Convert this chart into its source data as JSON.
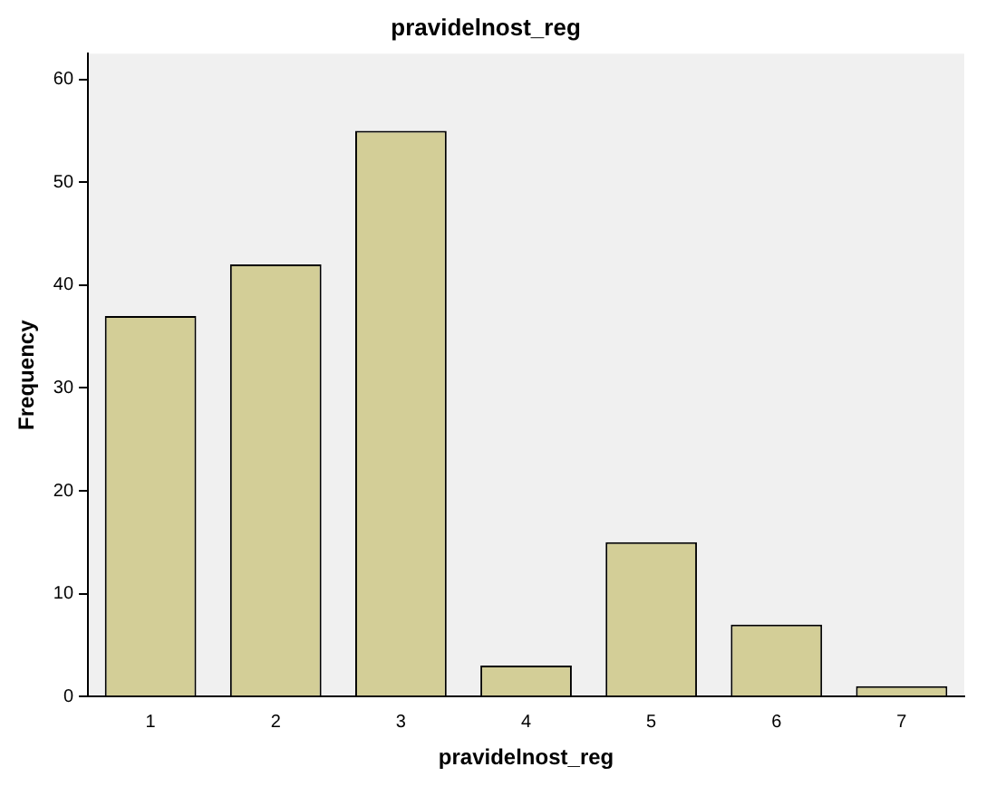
{
  "chart_data": {
    "type": "bar",
    "title": "pravidelnost_reg",
    "xlabel": "pravidelnost_reg",
    "ylabel": "Frequency",
    "categories": [
      "1",
      "2",
      "3",
      "4",
      "5",
      "6",
      "7"
    ],
    "values": [
      37,
      42,
      55,
      3,
      15,
      7,
      1
    ],
    "color": "#d3ce97",
    "ylim": [
      0,
      62.5
    ],
    "yticks": [
      0,
      10,
      20,
      30,
      40,
      50,
      60
    ],
    "grid": false,
    "legend": false
  }
}
